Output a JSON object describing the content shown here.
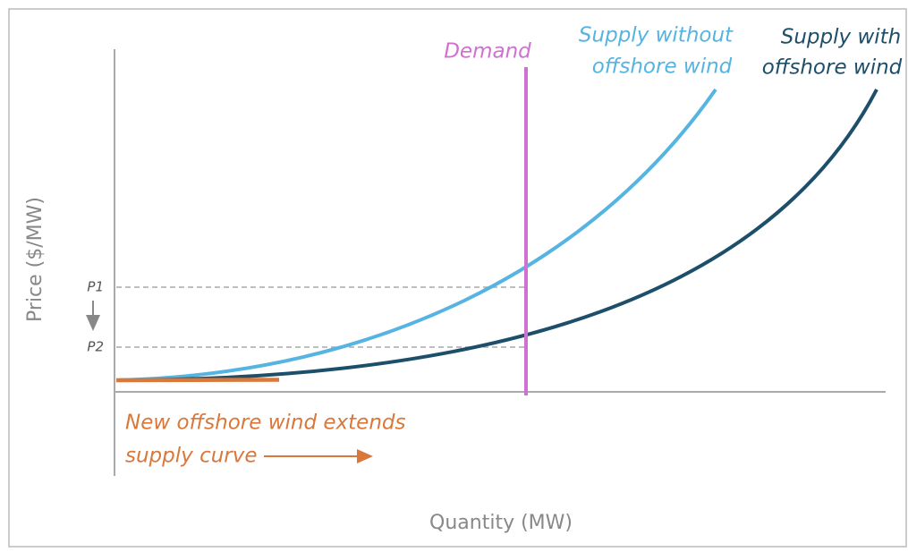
{
  "axes": {
    "y_title": "Price ($/MW)",
    "x_title": "Quantity (MW)"
  },
  "price_levels": [
    "P1",
    "P2"
  ],
  "demand": {
    "label": "Demand"
  },
  "supply_without": {
    "label": [
      "Supply without",
      "offshore wind"
    ]
  },
  "supply_with": {
    "label": [
      "Supply with",
      "offshore wind"
    ]
  },
  "annotation": {
    "lines": [
      "New offshore wind extends",
      "supply curve"
    ]
  }
}
